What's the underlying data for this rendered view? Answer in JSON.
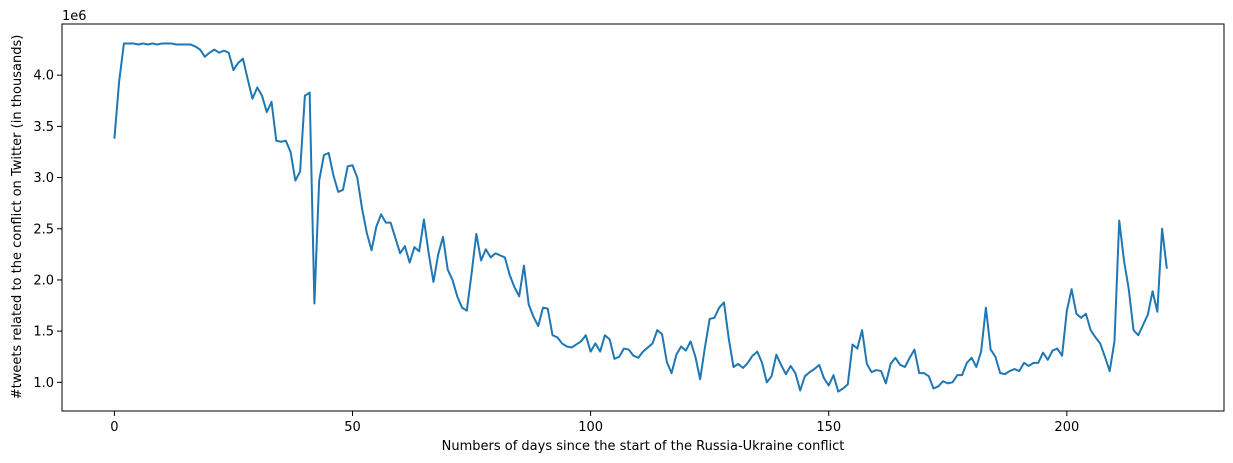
{
  "chart_data": {
    "type": "line",
    "title": "",
    "xlabel": "Numbers of days since the start of the Russia-Ukraine conflict",
    "ylabel": "#tweets related to the conflict on Twitter (in thousands)",
    "y_offset_text": "1e6",
    "xlim": [
      -11,
      233
    ],
    "ylim": [
      720000,
      4500000
    ],
    "grid": false,
    "legend": "none",
    "line_color": "#1f77b4",
    "x_ticks": [
      0,
      50,
      100,
      150,
      200
    ],
    "y_ticks": [
      1.0,
      1.5,
      2.0,
      2.5,
      3.0,
      3.5,
      4.0
    ],
    "y_tick_scale": 1000000,
    "series": [
      {
        "values": [
          3380000,
          3940000,
          4310000,
          4310000,
          4310000,
          4300000,
          4310000,
          4300000,
          4310000,
          4300000,
          4310000,
          4310000,
          4310000,
          4300000,
          4300000,
          4300000,
          4300000,
          4280000,
          4250000,
          4180000,
          4220000,
          4250000,
          4220000,
          4240000,
          4220000,
          4050000,
          4120000,
          4160000,
          3960000,
          3770000,
          3880000,
          3800000,
          3640000,
          3740000,
          3360000,
          3350000,
          3360000,
          3250000,
          2970000,
          3060000,
          3800000,
          3830000,
          1770000,
          2970000,
          3220000,
          3240000,
          3020000,
          2860000,
          2880000,
          3110000,
          3120000,
          3000000,
          2700000,
          2460000,
          2290000,
          2520000,
          2640000,
          2560000,
          2560000,
          2410000,
          2260000,
          2330000,
          2170000,
          2320000,
          2280000,
          2590000,
          2260000,
          1980000,
          2250000,
          2420000,
          2100000,
          2000000,
          1840000,
          1730000,
          1700000,
          2060000,
          2450000,
          2190000,
          2300000,
          2220000,
          2260000,
          2240000,
          2220000,
          2050000,
          1930000,
          1840000,
          2140000,
          1760000,
          1640000,
          1550000,
          1730000,
          1720000,
          1460000,
          1440000,
          1380000,
          1350000,
          1340000,
          1370000,
          1400000,
          1460000,
          1300000,
          1380000,
          1300000,
          1460000,
          1420000,
          1230000,
          1250000,
          1330000,
          1320000,
          1260000,
          1240000,
          1300000,
          1340000,
          1380000,
          1510000,
          1470000,
          1200000,
          1090000,
          1270000,
          1350000,
          1310000,
          1400000,
          1250000,
          1030000,
          1340000,
          1620000,
          1630000,
          1730000,
          1780000,
          1430000,
          1150000,
          1180000,
          1140000,
          1190000,
          1260000,
          1300000,
          1190000,
          1000000,
          1060000,
          1270000,
          1170000,
          1080000,
          1160000,
          1090000,
          920000,
          1060000,
          1100000,
          1130000,
          1170000,
          1040000,
          970000,
          1070000,
          910000,
          940000,
          980000,
          1370000,
          1330000,
          1510000,
          1180000,
          1100000,
          1120000,
          1110000,
          990000,
          1180000,
          1240000,
          1170000,
          1150000,
          1240000,
          1320000,
          1090000,
          1090000,
          1060000,
          940000,
          960000,
          1010000,
          990000,
          1000000,
          1070000,
          1070000,
          1190000,
          1240000,
          1150000,
          1300000,
          1730000,
          1320000,
          1250000,
          1090000,
          1080000,
          1110000,
          1130000,
          1110000,
          1190000,
          1160000,
          1190000,
          1190000,
          1290000,
          1220000,
          1310000,
          1330000,
          1260000,
          1700000,
          1910000,
          1670000,
          1630000,
          1670000,
          1510000,
          1440000,
          1380000,
          1250000,
          1110000,
          1400000,
          2580000,
          2190000,
          1910000,
          1510000,
          1460000,
          1560000,
          1660000,
          1890000,
          1690000,
          2500000,
          2110000
        ]
      }
    ]
  }
}
